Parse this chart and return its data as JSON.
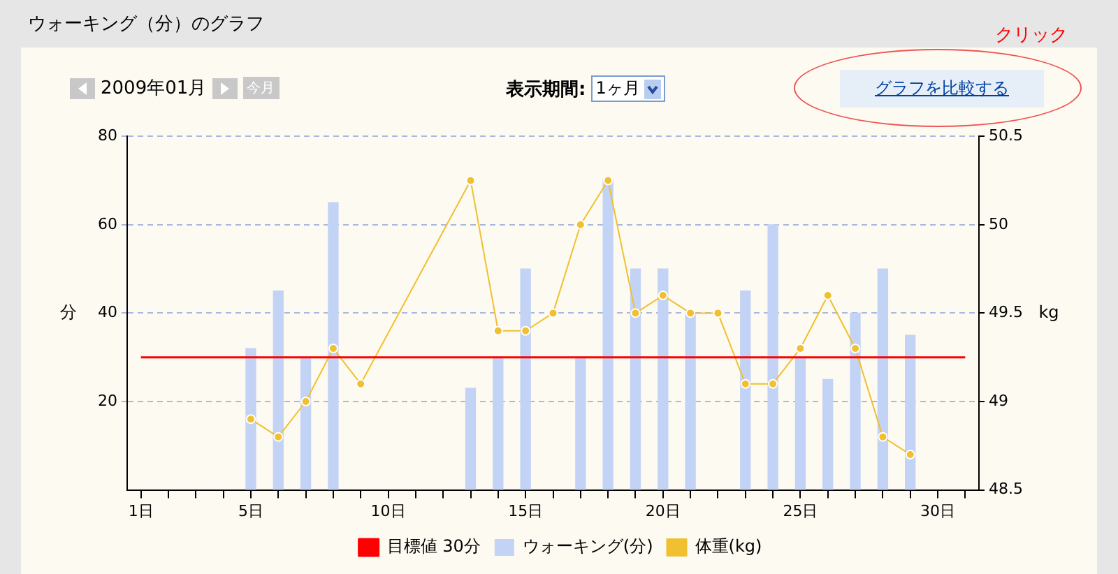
{
  "chart_data": {
    "type": "bar",
    "title": "ウォーキング（分）のグラフ",
    "subtitle": "2009年01月",
    "annotations": [
      "今月",
      "表示期間:",
      "1ヶ月",
      "グラフを比較する",
      "クリック"
    ],
    "ylabel": "分",
    "y2label": "kg",
    "categories": [
      "1日",
      null,
      null,
      null,
      "5日",
      null,
      null,
      null,
      null,
      "10日",
      null,
      null,
      null,
      null,
      "15日",
      null,
      null,
      null,
      null,
      "20日",
      null,
      null,
      null,
      null,
      "25日",
      null,
      null,
      null,
      null,
      "30日",
      null
    ],
    "ylim": [
      0,
      80
    ],
    "yticks": [
      20,
      40,
      60,
      80
    ],
    "y2lim": [
      48.5,
      50.5
    ],
    "y2ticks": [
      48.5,
      49,
      49.5,
      50,
      50.5
    ],
    "grid": "y",
    "legend": "bottom",
    "series": [
      {
        "name": "目標値 30分",
        "type": "line",
        "color": "#ff0000",
        "marker": "none",
        "line_style": "solid",
        "values": [
          30,
          30,
          30,
          30,
          30,
          30,
          30,
          30,
          30,
          30,
          30,
          30,
          30,
          30,
          30,
          30,
          30,
          30,
          30,
          30,
          30,
          30,
          30,
          30,
          30,
          30,
          30,
          30,
          30,
          30,
          30
        ]
      },
      {
        "name": "ウォーキング(分)",
        "color": "#c3d3f5",
        "values": [
          null,
          null,
          null,
          null,
          32,
          45,
          30,
          65,
          null,
          null,
          null,
          null,
          23,
          30,
          50,
          null,
          30,
          70,
          50,
          50,
          40,
          null,
          45,
          60,
          30,
          25,
          40,
          50,
          35,
          null,
          null
        ]
      },
      {
        "name": "体重(kg)",
        "type": "line",
        "axis": "y2",
        "color": "#f0c030",
        "marker": "circle",
        "line_style": "solid",
        "values": [
          null,
          null,
          null,
          null,
          48.9,
          48.8,
          49.0,
          49.3,
          49.1,
          null,
          null,
          null,
          50.25,
          49.4,
          49.4,
          49.5,
          50.0,
          50.25,
          49.5,
          49.6,
          49.5,
          49.5,
          49.1,
          49.1,
          49.3,
          49.6,
          49.3,
          48.8,
          48.7,
          null,
          null
        ]
      }
    ]
  }
}
